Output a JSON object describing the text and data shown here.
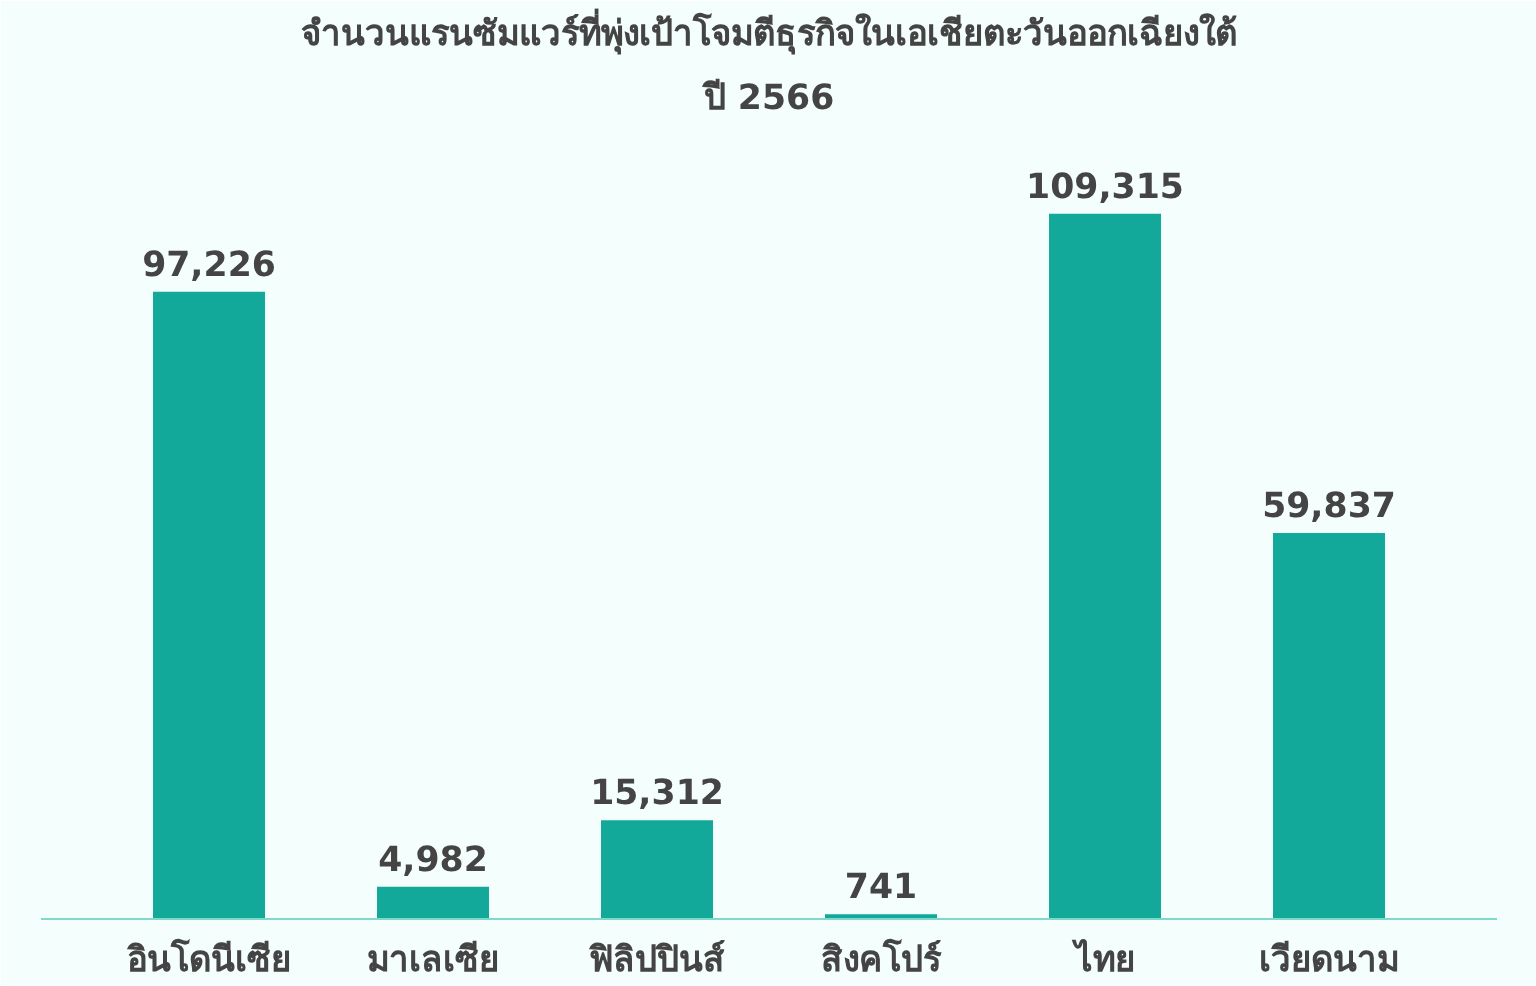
{
  "chart_data": {
    "type": "bar",
    "title": "จำนวนแรนซัมแวร์ที่พุ่งเป้าโจมตีธุรกิจในเอเชียตะวันออกเฉียงใต้",
    "subtitle": "ปี 2566",
    "categories": [
      "อินโดนีเซีย",
      "มาเลเซีย",
      "ฟิลิปปินส์",
      "สิงคโปร์",
      "ไทย",
      "เวียดนาม"
    ],
    "values": [
      97226,
      4982,
      15312,
      741,
      109315,
      59837
    ],
    "value_labels": [
      "97,226",
      "4,982",
      "15,312",
      "741",
      "109,315",
      "59,837"
    ],
    "color": "#12a89a",
    "tick_labels": "x"
  }
}
